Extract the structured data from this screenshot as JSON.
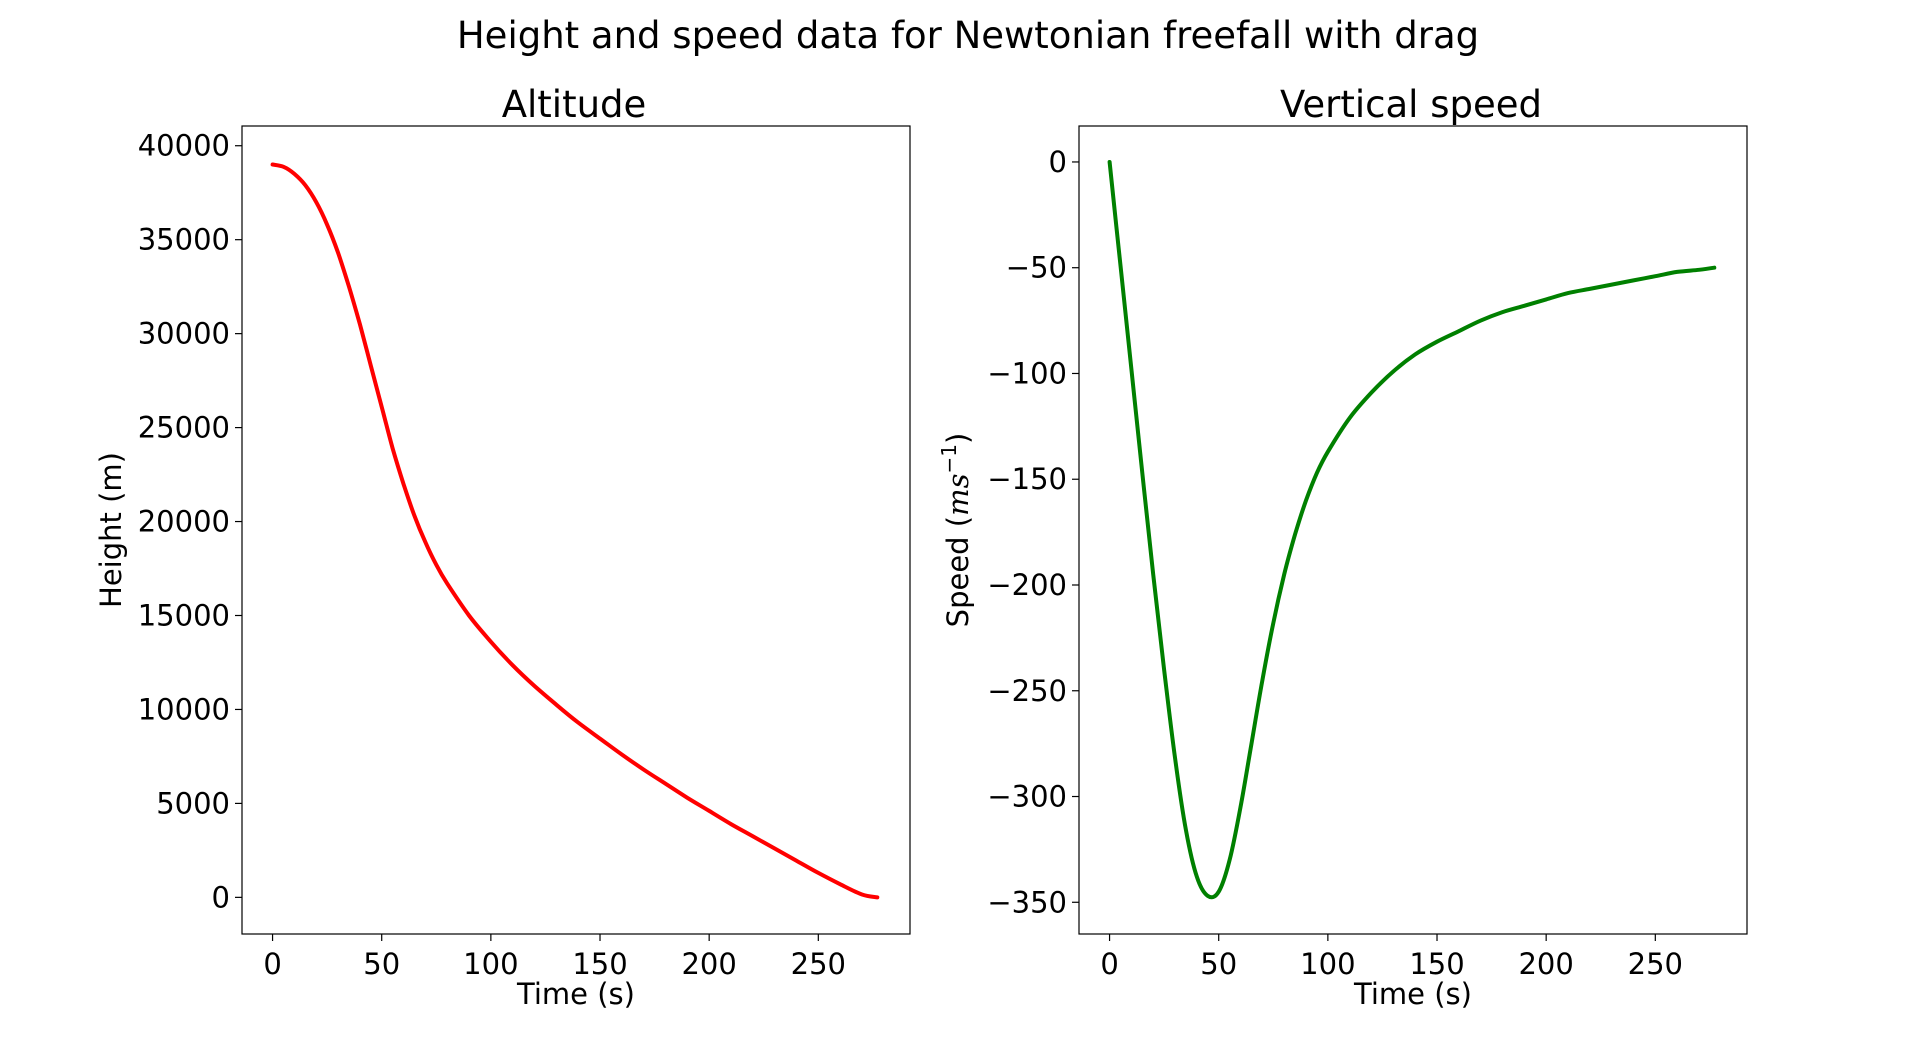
{
  "figure": {
    "suptitle": "Height and speed data for Newtonian freefall with drag"
  },
  "chart_data": [
    {
      "type": "line",
      "title": "Altitude",
      "xlabel": "Time (s)",
      "ylabel": "Height (m)",
      "xlim": [
        -14,
        292
      ],
      "ylim": [
        -1950,
        41050
      ],
      "xticks": [
        0,
        50,
        100,
        150,
        200,
        250
      ],
      "yticks": [
        0,
        5000,
        10000,
        15000,
        20000,
        25000,
        30000,
        35000,
        40000
      ],
      "grid": false,
      "series": [
        {
          "color": "#ff0000",
          "x": [
            0,
            5,
            10,
            15,
            20,
            25,
            30,
            35,
            40,
            45,
            50,
            55,
            60,
            65,
            70,
            75,
            80,
            90,
            100,
            110,
            120,
            130,
            140,
            150,
            160,
            170,
            180,
            190,
            200,
            210,
            220,
            230,
            240,
            250,
            260,
            270,
            277
          ],
          "y": [
            39000,
            38880,
            38500,
            37900,
            37000,
            35800,
            34300,
            32500,
            30500,
            28300,
            26100,
            23900,
            22000,
            20300,
            18900,
            17700,
            16700,
            15000,
            13600,
            12350,
            11250,
            10250,
            9300,
            8450,
            7600,
            6800,
            6050,
            5300,
            4600,
            3900,
            3250,
            2600,
            1950,
            1300,
            700,
            150,
            0
          ]
        }
      ]
    },
    {
      "type": "line",
      "title": "Vertical speed",
      "xlabel": "Time (s)",
      "ylabel_prefix": "Speed (",
      "ylabel_math": "ms",
      "ylabel_sup": "−1",
      "ylabel_suffix": ")",
      "xlim": [
        -14,
        292
      ],
      "ylim": [
        -365,
        17
      ],
      "xticks": [
        0,
        50,
        100,
        150,
        200,
        250
      ],
      "yticks": [
        0,
        -50,
        -100,
        -150,
        -200,
        -250,
        -300,
        -350
      ],
      "ytick_labels": [
        "0",
        "−50",
        "−100",
        "−150",
        "−200",
        "−250",
        "−300",
        "−350"
      ],
      "grid": false,
      "series": [
        {
          "color": "#008000",
          "x": [
            0,
            5,
            10,
            15,
            20,
            25,
            30,
            35,
            40,
            45,
            50,
            55,
            60,
            65,
            70,
            75,
            80,
            85,
            90,
            95,
            100,
            110,
            120,
            130,
            140,
            150,
            160,
            170,
            180,
            190,
            200,
            210,
            220,
            230,
            240,
            250,
            260,
            270,
            277
          ],
          "y": [
            0,
            -49,
            -98,
            -147,
            -195,
            -240,
            -282,
            -316,
            -338,
            -347,
            -345,
            -330,
            -305,
            -275,
            -245,
            -218,
            -195,
            -176,
            -160,
            -147,
            -137,
            -121,
            -109,
            -99,
            -91,
            -85,
            -80,
            -75,
            -71,
            -68,
            -65,
            -62,
            -60,
            -58,
            -56,
            -54,
            -52,
            -51,
            -50
          ]
        }
      ]
    }
  ]
}
